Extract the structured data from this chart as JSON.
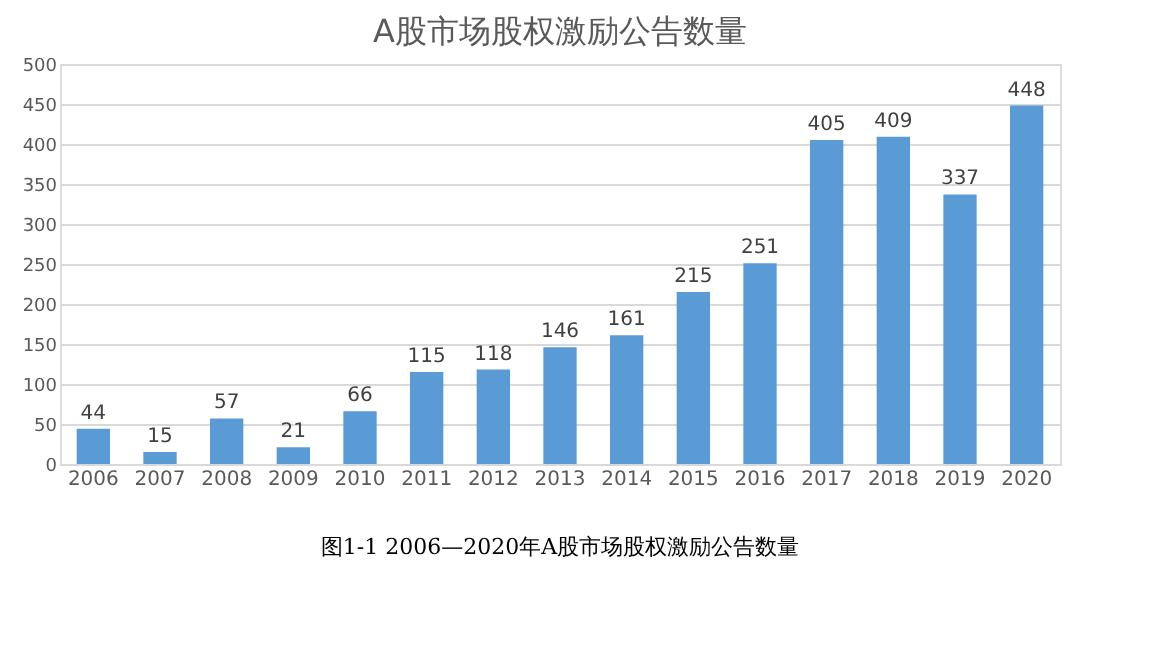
{
  "chart_data": {
    "type": "bar",
    "title": "A股市场股权激励公告数量",
    "categories": [
      "2006",
      "2007",
      "2008",
      "2009",
      "2010",
      "2011",
      "2012",
      "2013",
      "2014",
      "2015",
      "2016",
      "2017",
      "2018",
      "2019",
      "2020"
    ],
    "values": [
      44,
      15,
      57,
      21,
      66,
      115,
      118,
      146,
      161,
      215,
      251,
      405,
      409,
      337,
      448
    ],
    "color": "#5b9bd5",
    "ylim": [
      0,
      500
    ],
    "yticks": [
      0,
      50,
      100,
      150,
      200,
      250,
      300,
      350,
      400,
      450,
      500
    ],
    "grid": "y",
    "data_labels": true,
    "annotations": [
      "图1-1  2006—2020年A股市场股权激励公告数量"
    ]
  }
}
